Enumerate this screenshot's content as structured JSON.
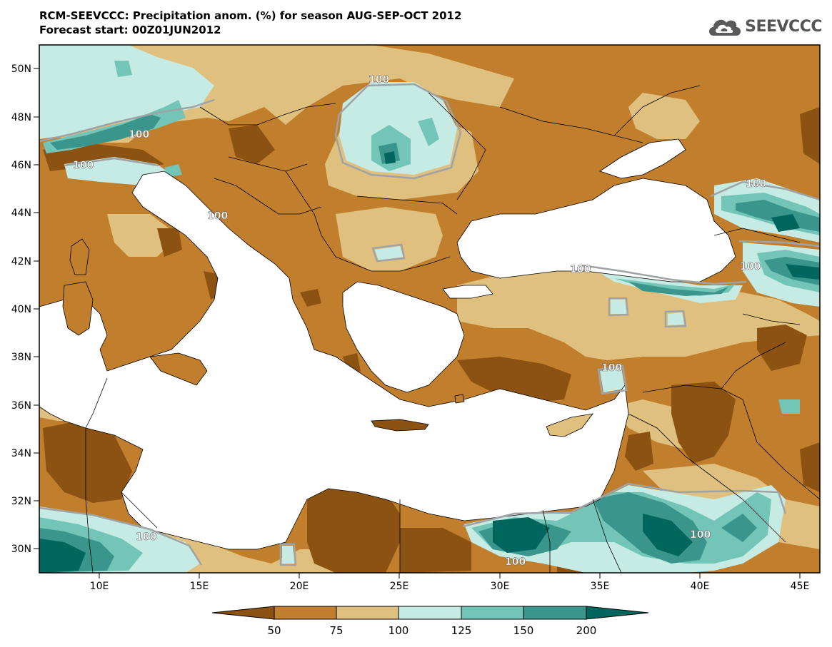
{
  "title": {
    "line1": "RCM-SEEVCCC: Precipitation anom. (%) for season AUG-SEP-OCT 2012",
    "line2": "Forecast start: 00Z01JUN2012"
  },
  "logo": {
    "text": "SEEVCCC",
    "icon": "cloud-icon"
  },
  "map": {
    "variable": "Precipitation anomaly",
    "units": "%",
    "season": "AUG-SEP-OCT 2012",
    "forecast_start": "00Z01JUN2012",
    "lat_range": [
      29,
      51
    ],
    "lon_range": [
      7,
      46
    ],
    "lat_ticks": [
      "50N",
      "48N",
      "46N",
      "44N",
      "42N",
      "40N",
      "38N",
      "36N",
      "34N",
      "32N",
      "30N"
    ],
    "lon_ticks": [
      "10E",
      "15E",
      "20E",
      "25E",
      "30E",
      "35E",
      "40E",
      "45E"
    ],
    "contour_labels": [
      "100",
      "100",
      "100",
      "100",
      "100",
      "100",
      "100",
      "100",
      "100",
      "100",
      "100"
    ]
  },
  "colorbar": {
    "levels": [
      "50",
      "75",
      "100",
      "125",
      "150",
      "200"
    ],
    "colors": [
      "#8c5211",
      "#c17f2e",
      "#dfc07e",
      "#c6ebe4",
      "#73c5b8",
      "#3a968c",
      "#00665e"
    ]
  }
}
